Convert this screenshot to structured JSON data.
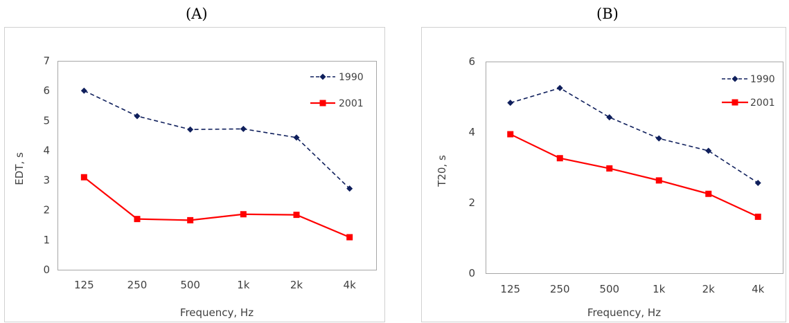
{
  "chart_data": [
    {
      "panel_label": "(A)",
      "type": "line",
      "categories": [
        "125",
        "250",
        "500",
        "1k",
        "2k",
        "4k"
      ],
      "xlabel": "Frequency, Hz",
      "ylabel": "EDT, s",
      "ylim": [
        0,
        7
      ],
      "yticks": [
        "0",
        "1",
        "2",
        "3",
        "4",
        "5",
        "6",
        "7"
      ],
      "grid": false,
      "legend_position": "top-right",
      "series": [
        {
          "name": "1990",
          "values": [
            6.0,
            5.15,
            4.7,
            4.72,
            4.43,
            2.72
          ],
          "color": "#0f1f5c",
          "line_style": "dashed",
          "marker": "diamond"
        },
        {
          "name": "2001",
          "values": [
            3.1,
            1.7,
            1.66,
            1.86,
            1.84,
            1.09
          ],
          "color": "#ff0000",
          "line_style": "solid",
          "marker": "square"
        }
      ]
    },
    {
      "panel_label": "(B)",
      "type": "line",
      "categories": [
        "125",
        "250",
        "500",
        "1k",
        "2k",
        "4k"
      ],
      "xlabel": "Frequency, Hz",
      "ylabel": "T20, s",
      "ylim": [
        0,
        6
      ],
      "yticks": [
        "0",
        "2",
        "4",
        "6"
      ],
      "grid": false,
      "legend_position": "top-right",
      "series": [
        {
          "name": "1990",
          "values": [
            4.83,
            5.25,
            4.42,
            3.82,
            3.47,
            2.56
          ],
          "color": "#0f1f5c",
          "line_style": "dashed",
          "marker": "diamond"
        },
        {
          "name": "2001",
          "values": [
            3.94,
            3.26,
            2.97,
            2.63,
            2.25,
            1.6
          ],
          "color": "#ff0000",
          "line_style": "solid",
          "marker": "square"
        }
      ]
    }
  ]
}
